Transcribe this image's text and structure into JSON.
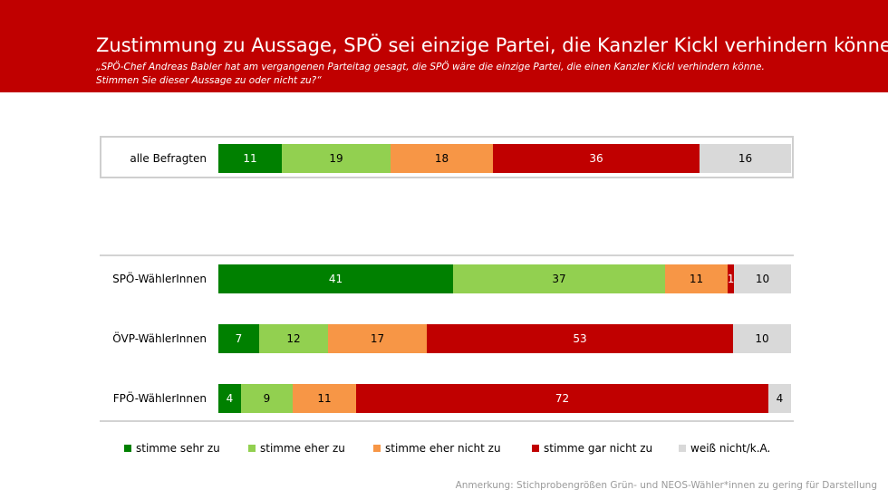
{
  "header": {
    "title": "Zustimmung zu Aussage, SPÖ sei einzige Partei, die Kanzler Kickl verhindern könne",
    "subtitle_line1": "„SPÖ-Chef Andreas Babler hat am vergangenen Parteitag gesagt, die SPÖ wäre die einzige Partei, die einen Kanzler Kickl verhindern könne.",
    "subtitle_line2": "Stimmen Sie dieser Aussage zu oder nicht zu?“"
  },
  "chart_data": {
    "type": "bar",
    "orientation": "horizontal",
    "stacked": true,
    "percent_scale": true,
    "categories": [
      "alle Befragten",
      "SPÖ-WählerInnen",
      "ÖVP-WählerInnen",
      "FPÖ-WählerInnen"
    ],
    "series": [
      {
        "name": "stimme sehr zu",
        "color": "#008000",
        "values": [
          11,
          41,
          7,
          4
        ]
      },
      {
        "name": "stimme eher zu",
        "color": "#92d050",
        "values": [
          19,
          37,
          12,
          9
        ]
      },
      {
        "name": "stimme eher nicht zu",
        "color": "#f79646",
        "values": [
          18,
          11,
          17,
          11
        ]
      },
      {
        "name": "stimme gar nicht zu",
        "color": "#c00000",
        "values": [
          36,
          1,
          53,
          72
        ]
      },
      {
        "name": "weiß nicht/k.A.",
        "color": "#d9d9d9",
        "values": [
          16,
          10,
          10,
          4
        ]
      }
    ],
    "legend_position": "bottom"
  },
  "footnote": "Anmerkung: Stichprobengrößen Grün- und NEOS-Wähler*innen zu gering für Darstellung",
  "colors": {
    "header_bg": "#c00000",
    "label_light": "#000000",
    "label_dark": "#ffffff"
  }
}
